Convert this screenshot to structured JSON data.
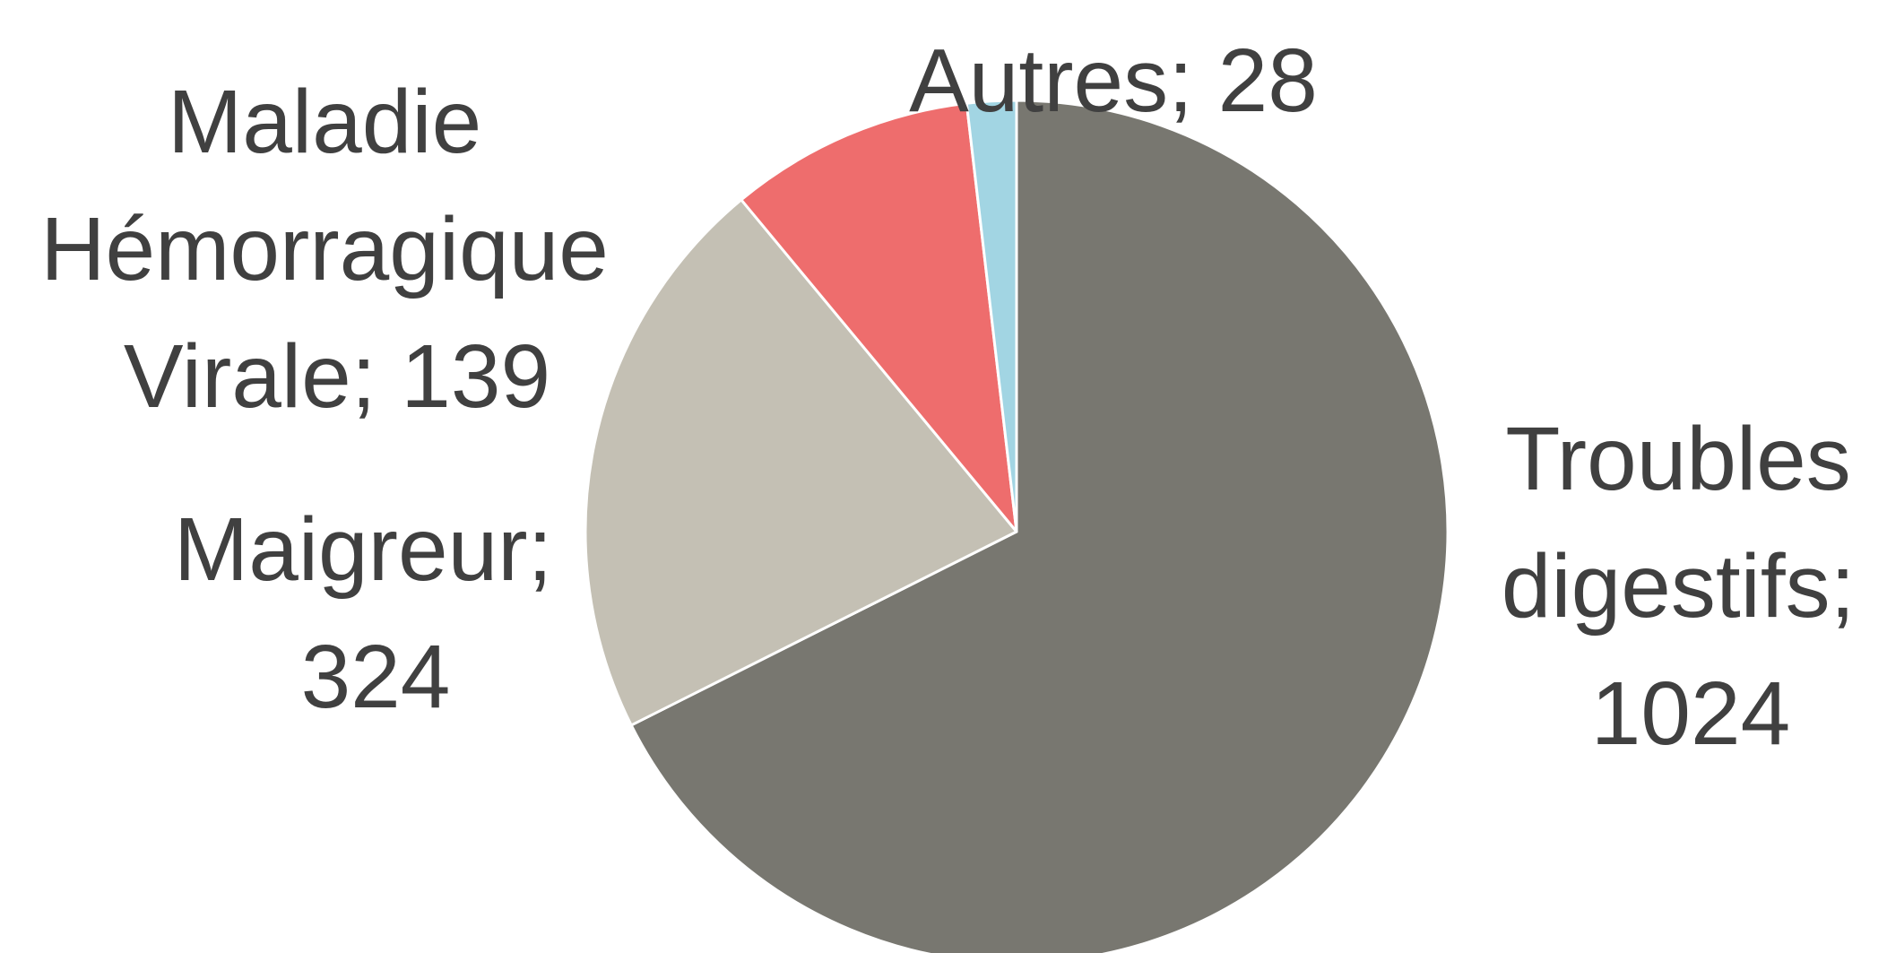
{
  "chart_data": {
    "type": "pie",
    "values": [
      1024,
      324,
      139,
      28
    ],
    "value_labels": [
      "Troubles digestifs; 1024",
      "Maigreur; 324",
      "Maladie Hémorragique Virale; 139",
      "Autres; 28"
    ],
    "colors": [
      "#787770",
      "#c4c0b4",
      "#ee6d6d",
      "#a2d5e3"
    ]
  }
}
